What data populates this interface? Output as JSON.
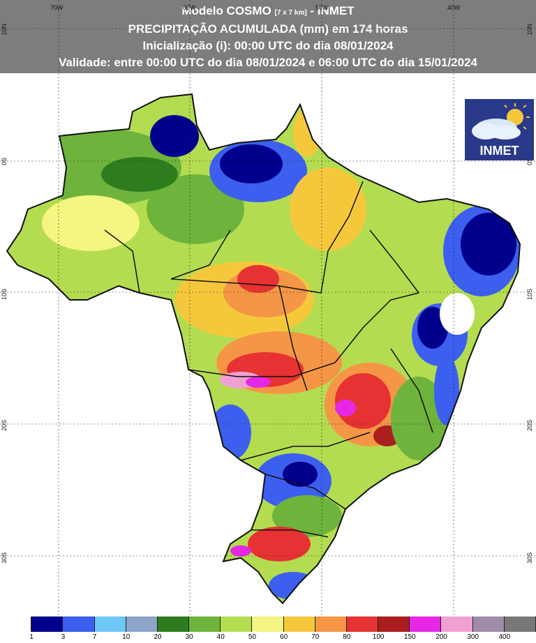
{
  "header": {
    "line1_main": "Modelo COSMO ",
    "line1_small": "[7 x 7 km]",
    "line1_tail": " - INMET",
    "line2": "PRECIPITAÇÃO ACUMULADA (mm) em 174 horas",
    "line3": "Inicialização (i): 00:00 UTC do dia 08/01/2024",
    "line4": "Validade: entre 00:00 UTC do dia 08/01/2024 e 06:00 UTC do dia 15/01/2024"
  },
  "coords": {
    "lon": [
      "70W",
      "60W",
      "50W",
      "40W"
    ],
    "lat": [
      "10N",
      "0S",
      "10S",
      "20S",
      "30S"
    ]
  },
  "logo": {
    "text": "INMET"
  },
  "legend": {
    "colors": [
      "#ffffff",
      "#00008c",
      "#3c5ff0",
      "#6ec8f5",
      "#8ca5c8",
      "#2d7d1e",
      "#6eb43c",
      "#b4dc50",
      "#f5f582",
      "#f5c83c",
      "#f59646",
      "#e63232",
      "#aa1e1e",
      "#e628e6",
      "#f0a0d2",
      "#a08caa",
      "#787878"
    ],
    "labels": [
      "1",
      "3",
      "7",
      "10",
      "20",
      "30",
      "40",
      "50",
      "60",
      "70",
      "80",
      "100",
      "150",
      "200",
      "300",
      "400"
    ]
  },
  "colors": {
    "header_bg": "#7d7d7d",
    "logo_bg": "#2a3a8a"
  }
}
